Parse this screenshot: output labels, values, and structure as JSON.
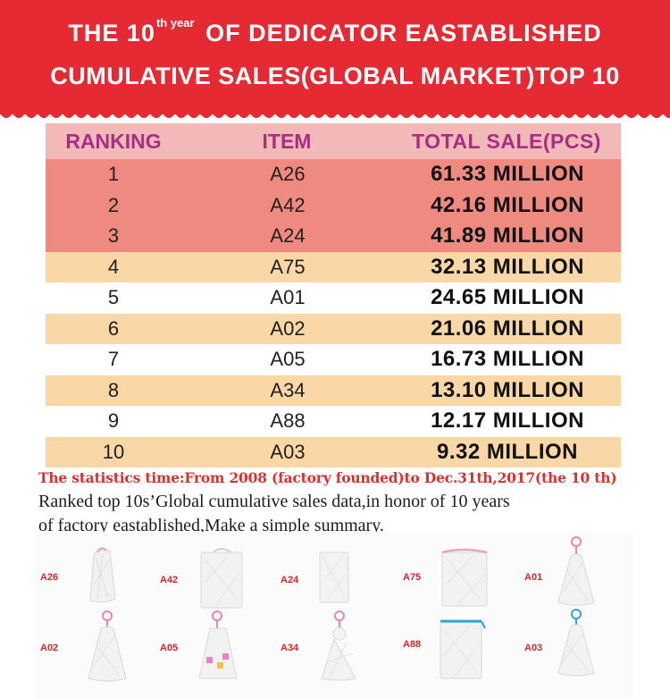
{
  "banner": {
    "line1_a": "THE",
    "line1_num": "10",
    "line1_sup": "th year",
    "line1_b": "OF DEDICATOR EASTABLISHED",
    "line2": "CUMULATIVE SALES(GLOBAL MARKET)TOP 10"
  },
  "table": {
    "headers": {
      "ranking": "RANKING",
      "item": "ITEM",
      "total": "TOTAL SALE(PCS)"
    },
    "rows": [
      {
        "rank": "1",
        "item": "A26",
        "total": "61.33 MILLION"
      },
      {
        "rank": "2",
        "item": "A42",
        "total": "42.16 MILLION"
      },
      {
        "rank": "3",
        "item": "A24",
        "total": "41.89 MILLION"
      },
      {
        "rank": "4",
        "item": "A75",
        "total": "32.13 MILLION"
      },
      {
        "rank": "5",
        "item": "A01",
        "total": "24.65 MILLION"
      },
      {
        "rank": "6",
        "item": "A02",
        "total": "21.06 MILLION"
      },
      {
        "rank": "7",
        "item": "A05",
        "total": "16.73 MILLION"
      },
      {
        "rank": "8",
        "item": "A34",
        "total": "13.10 MILLION"
      },
      {
        "rank": "9",
        "item": "A88",
        "total": "12.17 MILLION"
      },
      {
        "rank": "10",
        "item": "A03",
        "total": "9.32 MILLION"
      }
    ]
  },
  "notes": {
    "statistics": "The statistics time:From 2008 (factory founded)to Dec.31th,2017(the 10  th)",
    "summary_line1": "Ranked top 10s’Global cumulative sales data,in honor of 10 years",
    "summary_line2": "of factory eastablished,Make a simple summary."
  },
  "gallery": {
    "products": [
      "A26",
      "A42",
      "A24",
      "A75",
      "A01",
      "A02",
      "A05",
      "A34",
      "A88",
      "A03"
    ]
  },
  "colors": {
    "banner_red": "#e52a33",
    "header_pink": "#f3b8b8",
    "header_text": "#a72e84",
    "row_red": "#ef8a80",
    "row_peach": "#fad7a6",
    "note_red": "#d8322e"
  }
}
